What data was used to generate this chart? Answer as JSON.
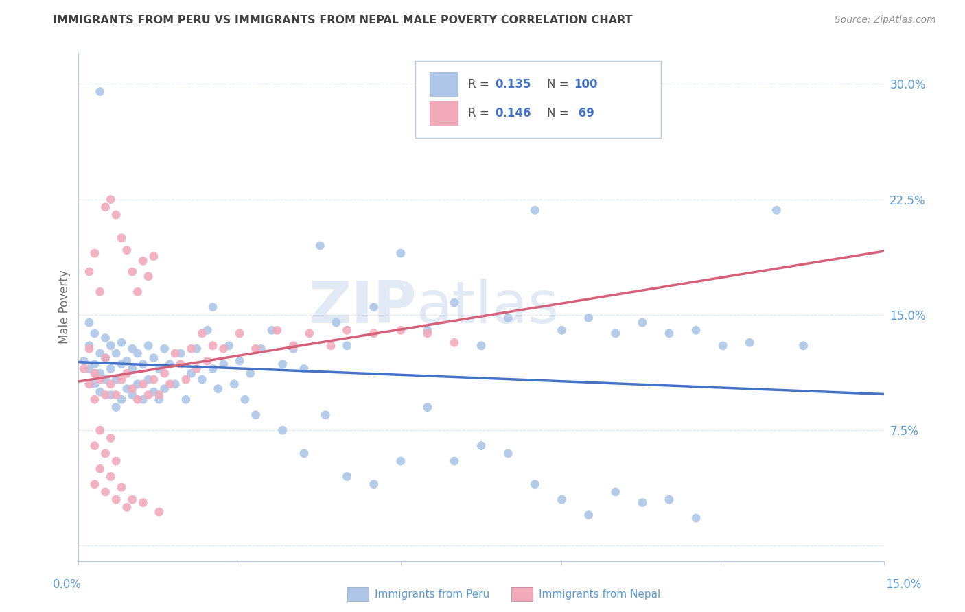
{
  "title": "IMMIGRANTS FROM PERU VS IMMIGRANTS FROM NEPAL MALE POVERTY CORRELATION CHART",
  "source": "Source: ZipAtlas.com",
  "ylabel": "Male Poverty",
  "yticks": [
    0.0,
    0.075,
    0.15,
    0.225,
    0.3
  ],
  "ytick_labels": [
    "",
    "7.5%",
    "15.0%",
    "22.5%",
    "30.0%"
  ],
  "xmin": 0.0,
  "xmax": 0.15,
  "ymin": -0.01,
  "ymax": 0.32,
  "watermark": "ZIPatlas",
  "peru_color": "#adc6e8",
  "nepal_color": "#f2aabb",
  "peru_line_color": "#4472c4",
  "nepal_line_color": "#d4607a",
  "title_color": "#404040",
  "axis_label_color": "#5b9bd5",
  "background_color": "#ffffff",
  "grid_color": "#dde5f0",
  "figsize": [
    14.06,
    8.92
  ],
  "dpi": 100,
  "peru_scatter_x": [
    0.001,
    0.002,
    0.002,
    0.002,
    0.003,
    0.003,
    0.003,
    0.004,
    0.004,
    0.004,
    0.004,
    0.005,
    0.005,
    0.005,
    0.006,
    0.006,
    0.006,
    0.007,
    0.007,
    0.007,
    0.008,
    0.008,
    0.008,
    0.009,
    0.009,
    0.01,
    0.01,
    0.01,
    0.011,
    0.011,
    0.012,
    0.012,
    0.013,
    0.013,
    0.014,
    0.014,
    0.015,
    0.015,
    0.016,
    0.016,
    0.017,
    0.018,
    0.019,
    0.02,
    0.021,
    0.022,
    0.023,
    0.024,
    0.025,
    0.025,
    0.026,
    0.027,
    0.028,
    0.029,
    0.03,
    0.031,
    0.032,
    0.033,
    0.034,
    0.036,
    0.038,
    0.04,
    0.042,
    0.045,
    0.048,
    0.05,
    0.055,
    0.06,
    0.065,
    0.07,
    0.075,
    0.08,
    0.085,
    0.09,
    0.095,
    0.1,
    0.105,
    0.11,
    0.115,
    0.12,
    0.125,
    0.13,
    0.135,
    0.038,
    0.042,
    0.046,
    0.05,
    0.055,
    0.06,
    0.065,
    0.07,
    0.075,
    0.08,
    0.085,
    0.09,
    0.095,
    0.1,
    0.105,
    0.11,
    0.115
  ],
  "peru_scatter_y": [
    0.12,
    0.115,
    0.13,
    0.145,
    0.105,
    0.118,
    0.138,
    0.1,
    0.112,
    0.125,
    0.295,
    0.108,
    0.122,
    0.135,
    0.098,
    0.115,
    0.13,
    0.09,
    0.108,
    0.125,
    0.095,
    0.118,
    0.132,
    0.102,
    0.12,
    0.098,
    0.115,
    0.128,
    0.105,
    0.125,
    0.095,
    0.118,
    0.108,
    0.13,
    0.1,
    0.122,
    0.095,
    0.115,
    0.102,
    0.128,
    0.118,
    0.105,
    0.125,
    0.095,
    0.112,
    0.128,
    0.108,
    0.14,
    0.115,
    0.155,
    0.102,
    0.118,
    0.13,
    0.105,
    0.12,
    0.095,
    0.112,
    0.085,
    0.128,
    0.14,
    0.118,
    0.128,
    0.115,
    0.195,
    0.145,
    0.13,
    0.155,
    0.19,
    0.14,
    0.158,
    0.13,
    0.148,
    0.218,
    0.14,
    0.148,
    0.138,
    0.145,
    0.138,
    0.14,
    0.13,
    0.132,
    0.218,
    0.13,
    0.075,
    0.06,
    0.085,
    0.045,
    0.04,
    0.055,
    0.09,
    0.055,
    0.065,
    0.06,
    0.04,
    0.03,
    0.02,
    0.035,
    0.028,
    0.03,
    0.018
  ],
  "nepal_scatter_x": [
    0.001,
    0.002,
    0.002,
    0.002,
    0.003,
    0.003,
    0.003,
    0.004,
    0.004,
    0.005,
    0.005,
    0.005,
    0.006,
    0.006,
    0.007,
    0.007,
    0.008,
    0.008,
    0.009,
    0.009,
    0.01,
    0.01,
    0.011,
    0.011,
    0.012,
    0.012,
    0.013,
    0.013,
    0.014,
    0.014,
    0.015,
    0.016,
    0.017,
    0.018,
    0.019,
    0.02,
    0.021,
    0.022,
    0.023,
    0.024,
    0.025,
    0.027,
    0.03,
    0.033,
    0.037,
    0.04,
    0.043,
    0.047,
    0.05,
    0.055,
    0.06,
    0.065,
    0.07,
    0.003,
    0.004,
    0.005,
    0.006,
    0.007,
    0.003,
    0.004,
    0.005,
    0.006,
    0.007,
    0.008,
    0.009,
    0.01,
    0.012,
    0.015
  ],
  "nepal_scatter_y": [
    0.115,
    0.105,
    0.128,
    0.178,
    0.095,
    0.112,
    0.19,
    0.108,
    0.165,
    0.098,
    0.122,
    0.22,
    0.105,
    0.225,
    0.098,
    0.215,
    0.108,
    0.2,
    0.112,
    0.192,
    0.102,
    0.178,
    0.095,
    0.165,
    0.105,
    0.185,
    0.098,
    0.175,
    0.108,
    0.188,
    0.098,
    0.112,
    0.105,
    0.125,
    0.118,
    0.108,
    0.128,
    0.115,
    0.138,
    0.12,
    0.13,
    0.128,
    0.138,
    0.128,
    0.14,
    0.13,
    0.138,
    0.13,
    0.14,
    0.138,
    0.14,
    0.138,
    0.132,
    0.065,
    0.075,
    0.06,
    0.07,
    0.055,
    0.04,
    0.05,
    0.035,
    0.045,
    0.03,
    0.038,
    0.025,
    0.03,
    0.028,
    0.022
  ]
}
